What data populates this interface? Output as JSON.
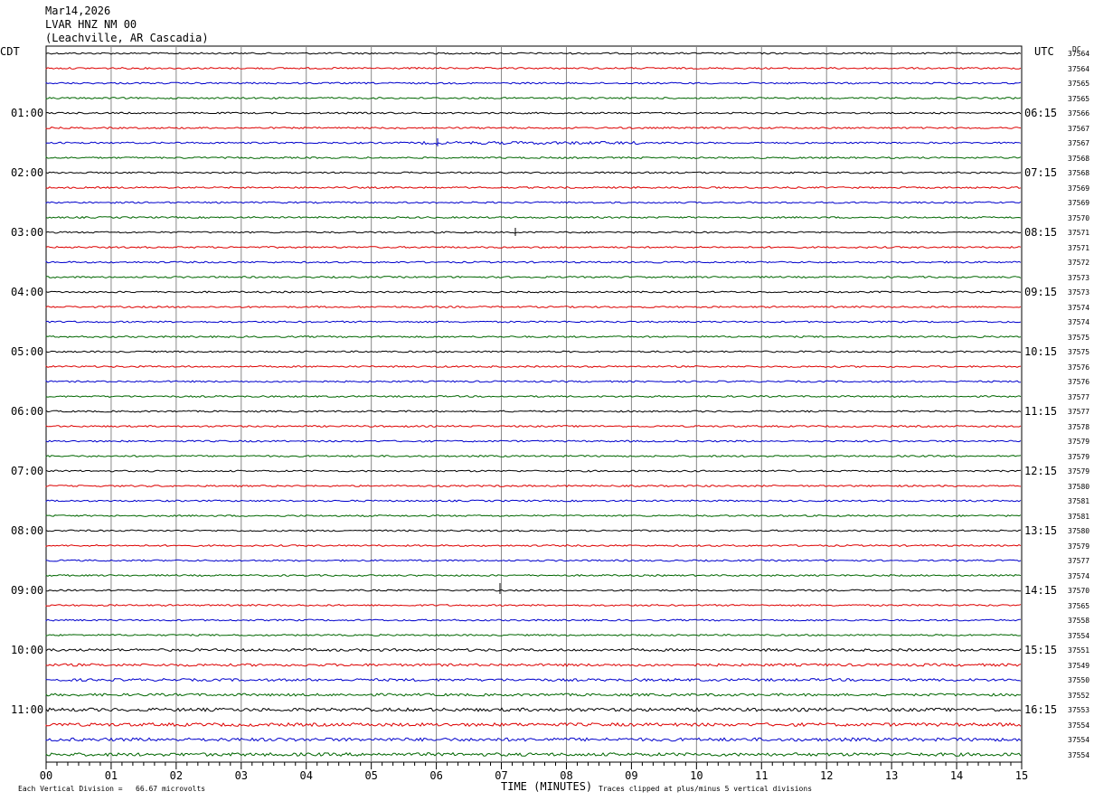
{
  "header": {
    "date": "Mar14,2026",
    "station": "LVAR HNZ NM 00",
    "location": "(Leachville, AR Cascadia)"
  },
  "left_tz": "CDT",
  "right_tz": "UTC",
  "dc_label": "DC",
  "footer": {
    "division": "Each Vertical Division =   66.67 microvolts",
    "xlabel": "TIME (MINUTES)",
    "clip": "Traces clipped at plus/minus 5 vertical divisions"
  },
  "chart_data": {
    "type": "line",
    "xlabel": "TIME (MINUTES)",
    "xlim": [
      0,
      15
    ],
    "x_ticks": [
      "00",
      "01",
      "02",
      "03",
      "04",
      "05",
      "06",
      "07",
      "08",
      "09",
      "10",
      "11",
      "12",
      "13",
      "14",
      "15"
    ],
    "trace_colors": [
      "#000000",
      "#dd0000",
      "#0000cc",
      "#006600"
    ],
    "trace_count": 48,
    "left_hour_labels": [
      "01:00",
      "02:00",
      "03:00",
      "04:00",
      "05:00",
      "06:00",
      "07:00",
      "08:00",
      "09:00",
      "10:00",
      "11:00"
    ],
    "right_hour_labels": [
      "06:15",
      "07:15",
      "08:15",
      "09:15",
      "10:15",
      "11:15",
      "12:15",
      "13:15",
      "14:15",
      "15:15",
      "16:15"
    ],
    "dc_values": [
      "37564",
      "37564",
      "37565",
      "37565",
      "37566",
      "37567",
      "37567",
      "37568",
      "37568",
      "37569",
      "37569",
      "37570",
      "37571",
      "37571",
      "37572",
      "37573",
      "37573",
      "37574",
      "37574",
      "37575",
      "37575",
      "37576",
      "37576",
      "37577",
      "37577",
      "37578",
      "37579",
      "37579",
      "37579",
      "37580",
      "37581",
      "37581",
      "37580",
      "37579",
      "37577",
      "37574",
      "37570",
      "37565",
      "37558",
      "37554",
      "37551",
      "37549",
      "37550",
      "37552",
      "37553",
      "37554",
      "37554",
      "37554"
    ]
  }
}
